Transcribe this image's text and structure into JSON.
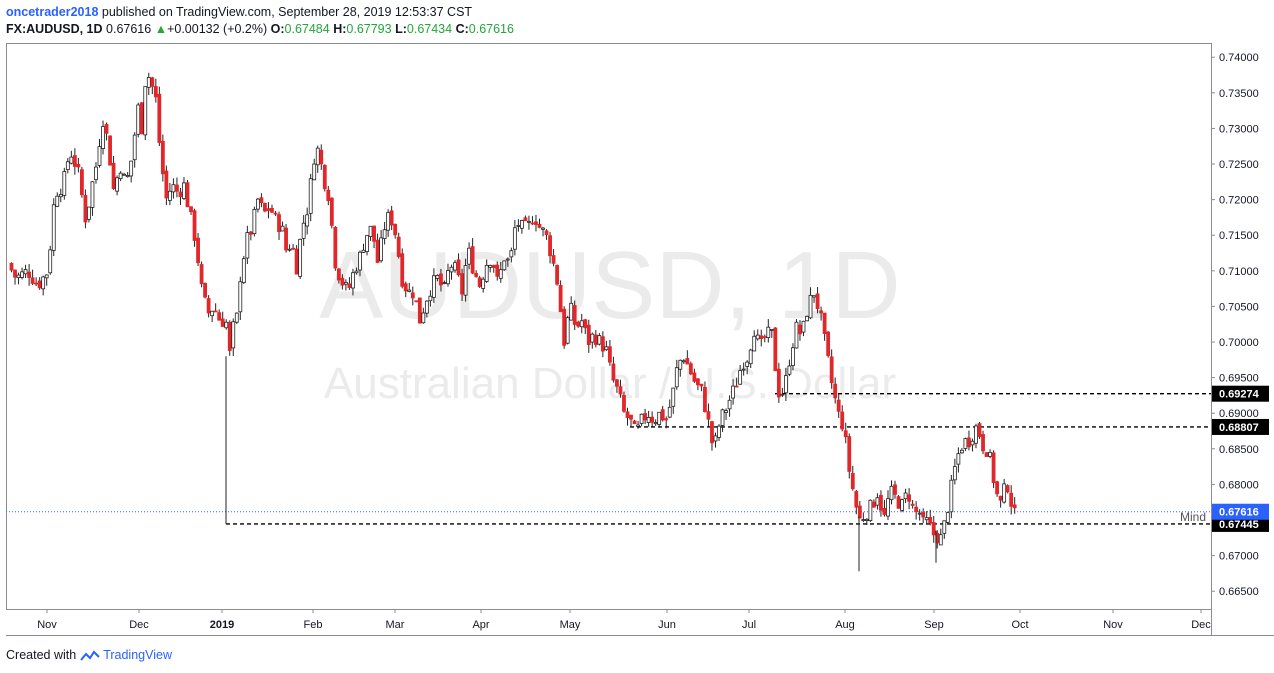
{
  "header": {
    "author": "oncetrader2018",
    "published_text": " published on TradingView.com, September 28, 2019 12:53:37 CST",
    "symbol": "FX:AUDUSD, 1D",
    "last": "0.67616",
    "change_arrow": "▲",
    "change": "+0.00132 (+0.2%)",
    "o_label": "O:",
    "o": "0.67484",
    "h_label": "H:",
    "h": "0.67793",
    "l_label": "L:",
    "l": "0.67434",
    "c_label": "C:",
    "c": "0.67616"
  },
  "watermark": {
    "symbol": "AUDUSD, 1D",
    "name": "Australian Dollar / U.S. Dollar"
  },
  "footer": {
    "created_with": "Created with",
    "brand": "TradingView"
  },
  "colors": {
    "up": "#ffffff",
    "down": "#e3262a",
    "wick": "#222222",
    "last_price": "#2962ff",
    "level": "#000000"
  },
  "chart_data": {
    "type": "candlestick",
    "interval": "1D",
    "y_axis": {
      "min": 0.6625,
      "max": 0.742,
      "ticks": [
        "0.74000",
        "0.73500",
        "0.73000",
        "0.72500",
        "0.72000",
        "0.71500",
        "0.71000",
        "0.70500",
        "0.70000",
        "0.69500",
        "0.69000",
        "0.68500",
        "0.68000",
        "0.67000",
        "0.66500"
      ]
    },
    "x_axis": {
      "ticks": [
        "Nov",
        "Dec",
        "2019",
        "Feb",
        "Mar",
        "Apr",
        "May",
        "Jun",
        "Jul",
        "Aug",
        "Sep",
        "Oct",
        "Nov",
        "Dec"
      ],
      "bold": [
        "2019"
      ]
    },
    "close_path": [
      [
        0,
        0.711
      ],
      [
        8,
        0.709
      ],
      [
        20,
        0.71
      ],
      [
        30,
        0.708
      ],
      [
        40,
        0.71
      ],
      [
        47,
        0.721
      ],
      [
        55,
        0.722
      ],
      [
        62,
        0.727
      ],
      [
        70,
        0.724
      ],
      [
        78,
        0.717
      ],
      [
        84,
        0.722
      ],
      [
        90,
        0.726
      ],
      [
        94,
        0.732
      ],
      [
        100,
        0.728
      ],
      [
        106,
        0.721
      ],
      [
        112,
        0.725
      ],
      [
        118,
        0.722
      ],
      [
        124,
        0.726
      ],
      [
        130,
        0.733
      ],
      [
        134,
        0.73
      ],
      [
        138,
        0.738
      ],
      [
        142,
        0.737
      ],
      [
        148,
        0.734
      ],
      [
        152,
        0.727
      ],
      [
        158,
        0.72
      ],
      [
        164,
        0.722
      ],
      [
        170,
        0.721
      ],
      [
        176,
        0.722
      ],
      [
        182,
        0.718
      ],
      [
        188,
        0.714
      ],
      [
        194,
        0.707
      ],
      [
        200,
        0.704
      ],
      [
        206,
        0.705
      ],
      [
        212,
        0.703
      ],
      [
        218,
        0.703
      ],
      [
        222,
        0.698
      ],
      [
        225,
        0.702
      ],
      [
        228,
        0.702
      ],
      [
        232,
        0.709
      ],
      [
        238,
        0.714
      ],
      [
        244,
        0.716
      ],
      [
        250,
        0.72
      ],
      [
        256,
        0.718
      ],
      [
        262,
        0.719
      ],
      [
        268,
        0.717
      ],
      [
        274,
        0.716
      ],
      [
        278,
        0.713
      ],
      [
        284,
        0.714
      ],
      [
        288,
        0.71
      ],
      [
        294,
        0.716
      ],
      [
        300,
        0.719
      ],
      [
        306,
        0.726
      ],
      [
        310,
        0.727
      ],
      [
        316,
        0.723
      ],
      [
        322,
        0.72
      ],
      [
        326,
        0.712
      ],
      [
        332,
        0.709
      ],
      [
        336,
        0.708
      ],
      [
        340,
        0.707
      ],
      [
        346,
        0.71
      ],
      [
        352,
        0.712
      ],
      [
        358,
        0.715
      ],
      [
        364,
        0.716
      ],
      [
        370,
        0.711
      ],
      [
        376,
        0.716
      ],
      [
        382,
        0.718
      ],
      [
        388,
        0.715
      ],
      [
        394,
        0.709
      ],
      [
        400,
        0.707
      ],
      [
        406,
        0.707
      ],
      [
        412,
        0.703
      ],
      [
        418,
        0.706
      ],
      [
        424,
        0.708
      ],
      [
        430,
        0.709
      ],
      [
        436,
        0.707
      ],
      [
        442,
        0.711
      ],
      [
        448,
        0.71
      ],
      [
        454,
        0.707
      ],
      [
        460,
        0.713
      ],
      [
        466,
        0.71
      ],
      [
        472,
        0.708
      ],
      [
        478,
        0.711
      ],
      [
        484,
        0.712
      ],
      [
        490,
        0.708
      ],
      [
        496,
        0.712
      ],
      [
        502,
        0.711
      ],
      [
        508,
        0.717
      ],
      [
        514,
        0.716
      ],
      [
        520,
        0.716
      ],
      [
        526,
        0.718
      ],
      [
        532,
        0.716
      ],
      [
        538,
        0.715
      ],
      [
        544,
        0.712
      ],
      [
        550,
        0.708
      ],
      [
        556,
        0.7
      ],
      [
        562,
        0.705
      ],
      [
        568,
        0.702
      ],
      [
        574,
        0.703
      ],
      [
        580,
        0.7
      ],
      [
        586,
        0.701
      ],
      [
        592,
        0.7
      ],
      [
        598,
        0.699
      ],
      [
        604,
        0.695
      ],
      [
        610,
        0.693
      ],
      [
        616,
        0.69
      ],
      [
        622,
        0.689
      ],
      [
        628,
        0.687
      ],
      [
        634,
        0.689
      ],
      [
        640,
        0.69
      ],
      [
        646,
        0.689
      ],
      [
        652,
        0.69
      ],
      [
        658,
        0.689
      ],
      [
        664,
        0.692
      ],
      [
        670,
        0.697
      ],
      [
        676,
        0.698
      ],
      [
        682,
        0.696
      ],
      [
        688,
        0.694
      ],
      [
        694,
        0.693
      ],
      [
        700,
        0.689
      ],
      [
        704,
        0.686
      ],
      [
        708,
        0.686
      ],
      [
        712,
        0.689
      ],
      [
        716,
        0.69
      ],
      [
        722,
        0.692
      ],
      [
        728,
        0.694
      ],
      [
        734,
        0.697
      ],
      [
        740,
        0.698
      ],
      [
        746,
        0.702
      ],
      [
        752,
        0.699
      ],
      [
        758,
        0.701
      ],
      [
        764,
        0.701
      ],
      [
        770,
        0.693
      ],
      [
        776,
        0.693
      ],
      [
        782,
        0.698
      ],
      [
        788,
        0.702
      ],
      [
        794,
        0.701
      ],
      [
        800,
        0.705
      ],
      [
        806,
        0.707
      ],
      [
        812,
        0.704
      ],
      [
        818,
        0.699
      ],
      [
        824,
        0.694
      ],
      [
        830,
        0.69
      ],
      [
        836,
        0.688
      ],
      [
        840,
        0.683
      ],
      [
        844,
        0.68
      ],
      [
        848,
        0.677
      ],
      [
        852,
        0.675
      ],
      [
        858,
        0.676
      ],
      [
        864,
        0.677
      ],
      [
        870,
        0.679
      ],
      [
        876,
        0.675
      ],
      [
        882,
        0.679
      ],
      [
        888,
        0.678
      ],
      [
        894,
        0.677
      ],
      [
        900,
        0.679
      ],
      [
        906,
        0.676
      ],
      [
        912,
        0.676
      ],
      [
        916,
        0.674
      ],
      [
        920,
        0.675
      ],
      [
        924,
        0.673
      ],
      [
        928,
        0.673
      ],
      [
        932,
        0.672
      ],
      [
        936,
        0.674
      ],
      [
        940,
        0.677
      ],
      [
        944,
        0.68
      ],
      [
        948,
        0.683
      ],
      [
        952,
        0.685
      ],
      [
        956,
        0.686
      ],
      [
        960,
        0.686
      ],
      [
        964,
        0.687
      ],
      [
        968,
        0.688
      ],
      [
        972,
        0.687
      ],
      [
        976,
        0.685
      ],
      [
        980,
        0.685
      ],
      [
        984,
        0.682
      ],
      [
        988,
        0.679
      ],
      [
        992,
        0.677
      ],
      [
        996,
        0.679
      ],
      [
        1000,
        0.68
      ],
      [
        1004,
        0.677
      ],
      [
        1008,
        0.675
      ],
      [
        1012,
        0.676
      ]
    ],
    "last_price": "0.67616",
    "levels": [
      {
        "value": 0.69274,
        "label": "0.69274"
      },
      {
        "value": 0.68807,
        "label": "0.68807"
      },
      {
        "value": 0.67445,
        "label": "0.67445",
        "annotation": "Mind"
      }
    ]
  }
}
